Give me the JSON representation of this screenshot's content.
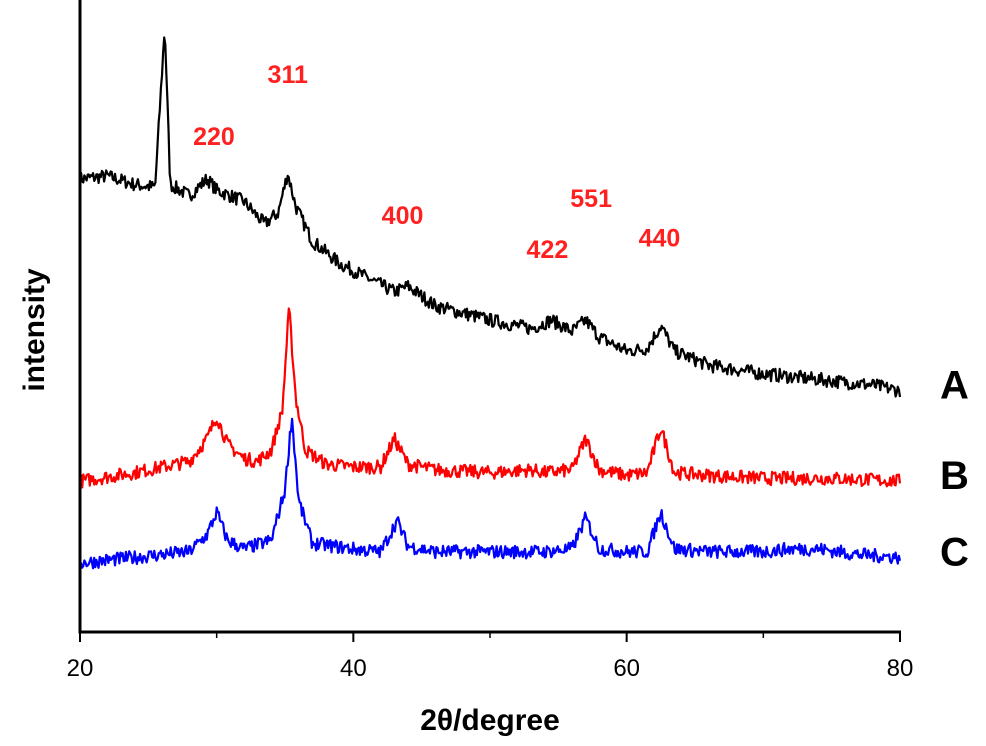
{
  "chart_data": {
    "type": "line",
    "xlabel": "2θ/degree",
    "ylabel": "intensity",
    "xlim": [
      20,
      80
    ],
    "ylim": [
      0,
      100
    ],
    "x_ticks": [
      "20",
      "40",
      "60",
      "80"
    ],
    "grid": false,
    "legend": "none",
    "series": [
      {
        "name": "A",
        "color": "#000000",
        "points": [
          [
            20,
            71
          ],
          [
            22,
            71.5
          ],
          [
            24,
            70
          ],
          [
            25.5,
            69.5
          ],
          [
            26.2,
            98
          ],
          [
            26.6,
            70
          ],
          [
            28,
            68
          ],
          [
            29.3,
            71
          ],
          [
            30,
            69
          ],
          [
            32,
            67
          ],
          [
            33.5,
            63
          ],
          [
            34.5,
            65
          ],
          [
            35.2,
            72
          ],
          [
            35.8,
            66
          ],
          [
            37,
            60
          ],
          [
            39,
            56
          ],
          [
            41,
            53.5
          ],
          [
            43,
            51
          ],
          [
            44,
            52
          ],
          [
            46,
            48.5
          ],
          [
            50,
            46
          ],
          [
            53,
            44.5
          ],
          [
            54.5,
            46
          ],
          [
            56,
            44
          ],
          [
            57,
            46
          ],
          [
            58,
            43
          ],
          [
            60,
            40.5
          ],
          [
            61.5,
            41
          ],
          [
            62.5,
            45
          ],
          [
            63.5,
            40.5
          ],
          [
            66,
            38
          ],
          [
            70,
            36.5
          ],
          [
            74,
            35.5
          ],
          [
            78,
            34.5
          ],
          [
            80,
            33.5
          ]
        ]
      },
      {
        "name": "B",
        "color": "#ff0000",
        "points": [
          [
            20,
            17.5
          ],
          [
            24,
            19
          ],
          [
            26,
            20
          ],
          [
            28,
            21
          ],
          [
            29.3,
            25
          ],
          [
            30,
            29
          ],
          [
            30.8,
            24
          ],
          [
            32,
            21.5
          ],
          [
            33,
            21
          ],
          [
            34,
            23
          ],
          [
            34.8,
            30
          ],
          [
            35.3,
            48
          ],
          [
            35.8,
            32
          ],
          [
            36.5,
            23
          ],
          [
            38,
            20.5
          ],
          [
            40,
            20
          ],
          [
            42,
            20
          ],
          [
            43,
            25
          ],
          [
            44,
            20.5
          ],
          [
            46,
            19.5
          ],
          [
            50,
            19
          ],
          [
            53,
            19.5
          ],
          [
            54,
            19
          ],
          [
            56,
            19.5
          ],
          [
            57,
            25
          ],
          [
            58,
            19.5
          ],
          [
            60,
            18.5
          ],
          [
            61.5,
            19
          ],
          [
            62.5,
            27
          ],
          [
            63.5,
            19
          ],
          [
            66,
            18.5
          ],
          [
            70,
            18
          ],
          [
            75,
            18
          ],
          [
            80,
            17.5
          ]
        ]
      },
      {
        "name": "C",
        "color": "#0000ff",
        "points": [
          [
            20,
            3
          ],
          [
            24,
            4
          ],
          [
            26,
            4.5
          ],
          [
            28,
            5
          ],
          [
            29.3,
            8
          ],
          [
            30,
            12
          ],
          [
            30.8,
            7
          ],
          [
            32,
            5.5
          ],
          [
            34,
            7
          ],
          [
            35,
            16
          ],
          [
            35.5,
            29
          ],
          [
            36,
            14
          ],
          [
            37,
            6.5
          ],
          [
            40,
            5.5
          ],
          [
            42,
            5
          ],
          [
            43.2,
            10.5
          ],
          [
            44,
            6
          ],
          [
            46,
            5
          ],
          [
            50,
            5
          ],
          [
            54,
            5
          ],
          [
            56,
            5.5
          ],
          [
            57,
            11
          ],
          [
            58,
            5.5
          ],
          [
            60,
            5
          ],
          [
            61.5,
            5
          ],
          [
            62.5,
            12
          ],
          [
            63.5,
            5.5
          ],
          [
            66,
            5
          ],
          [
            70,
            5
          ],
          [
            72,
            5.5
          ],
          [
            74,
            5.5
          ],
          [
            77,
            4.5
          ],
          [
            80,
            4
          ]
        ]
      }
    ],
    "series_labels": [
      "A",
      "B",
      "C"
    ],
    "peak_labels": [
      {
        "text": "220",
        "x": 29.8,
        "y": 77
      },
      {
        "text": "311",
        "x": 35.2,
        "y": 88
      },
      {
        "text": "400",
        "x": 43.6,
        "y": 63
      },
      {
        "text": "422",
        "x": 54.2,
        "y": 57
      },
      {
        "text": "551",
        "x": 57.4,
        "y": 66
      },
      {
        "text": "440",
        "x": 62.4,
        "y": 59
      }
    ]
  }
}
